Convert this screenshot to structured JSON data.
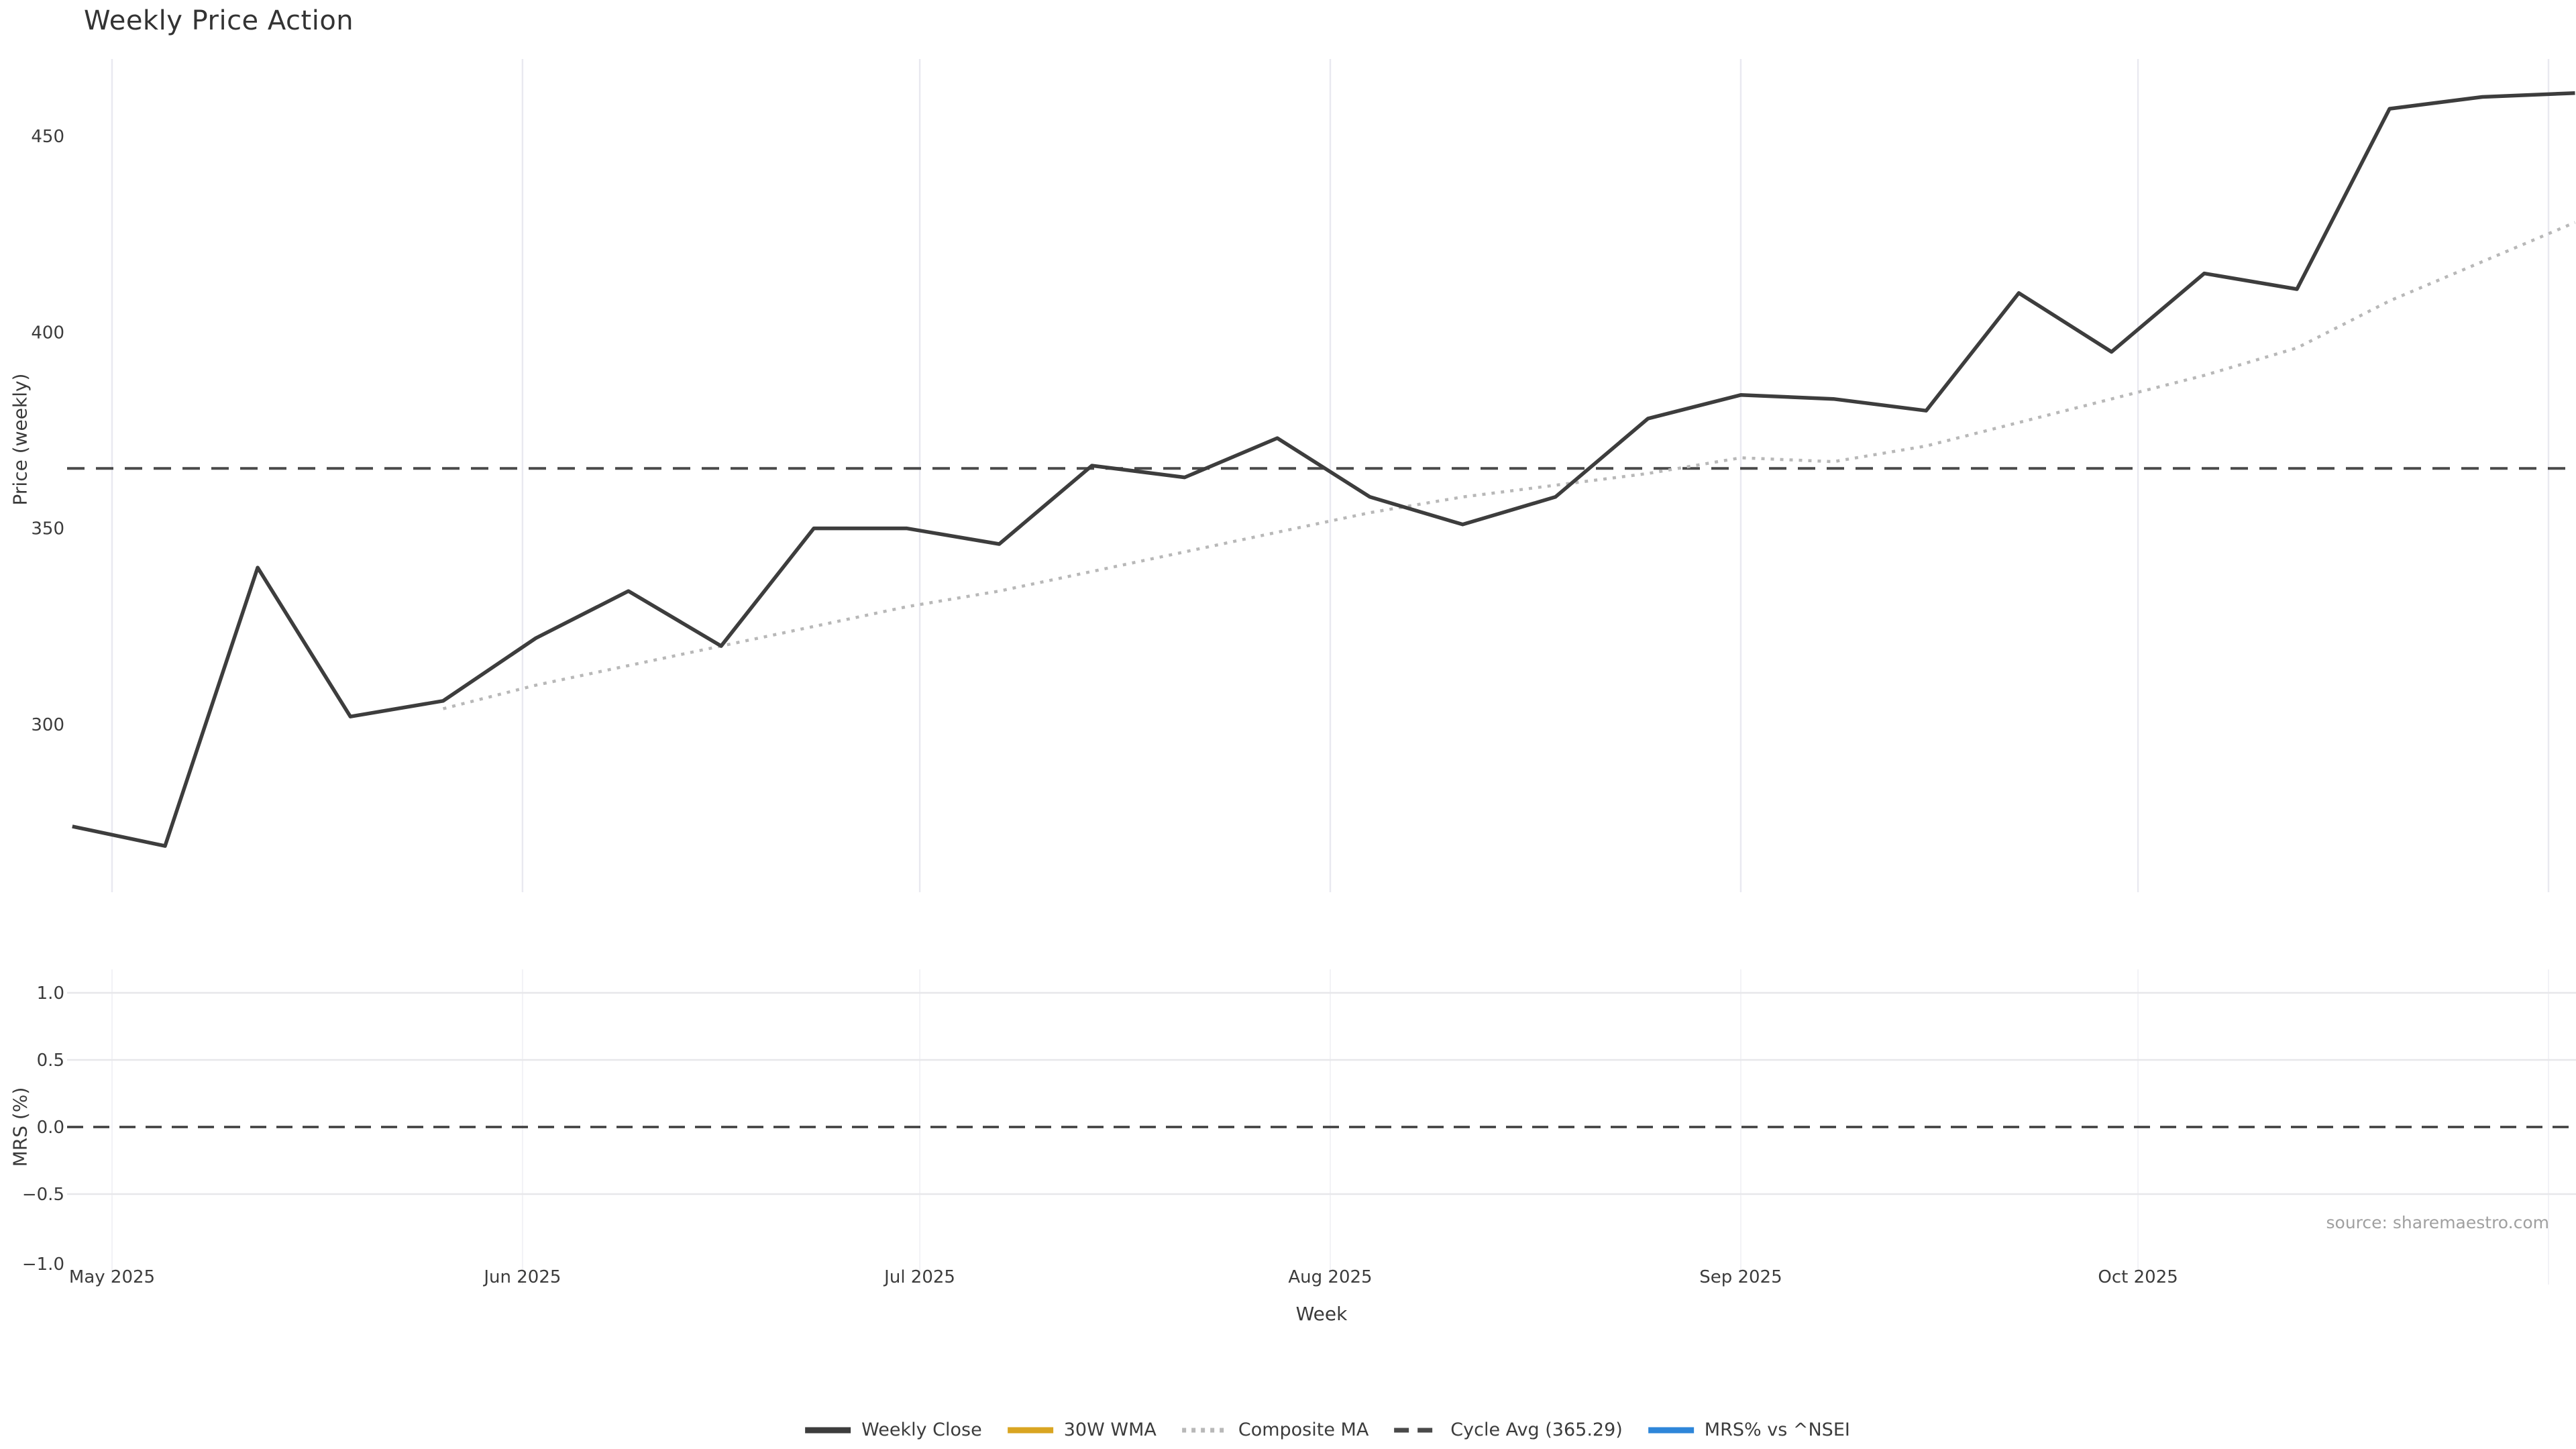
{
  "title": "Weekly Price Action",
  "source_note": "source: sharemaestro.com",
  "xlabel": "Week",
  "colors": {
    "close": "#3d3d3d",
    "wma30": "#d9a521",
    "composite": "#b8b8b8",
    "cycle_avg": "#4a4a4a",
    "mrs": "#2e86d9",
    "grid": "#e9e9f0",
    "grid_mrs": "#e7e7ea",
    "tick_text": "#3c3c3c",
    "source_text": "#a0a0a0"
  },
  "legend": [
    {
      "label": "Weekly Close",
      "color": "#3d3d3d",
      "style": "solid"
    },
    {
      "label": "30W WMA",
      "color": "#d9a521",
      "style": "solid"
    },
    {
      "label": "Composite MA",
      "color": "#b8b8b8",
      "style": "dotted"
    },
    {
      "label": "Cycle Avg (365.29)",
      "color": "#4a4a4a",
      "style": "dashed"
    },
    {
      "label": "MRS% vs ^NSEI",
      "color": "#2e86d9",
      "style": "solid"
    }
  ],
  "chart_data": [
    {
      "type": "line",
      "panel": "price",
      "title": "Weekly Price Action",
      "xlabel": "Week",
      "ylabel": "Price (weekly)",
      "ylim": [
        257,
        470
      ],
      "grid": "vertical-only",
      "legend_position": "bottom-center",
      "x_dates": [
        "2025-04-28",
        "2025-05-05",
        "2025-05-12",
        "2025-05-19",
        "2025-05-26",
        "2025-06-02",
        "2025-06-09",
        "2025-06-16",
        "2025-06-23",
        "2025-06-30",
        "2025-07-07",
        "2025-07-14",
        "2025-07-21",
        "2025-07-28",
        "2025-08-04",
        "2025-08-11",
        "2025-08-18",
        "2025-08-25",
        "2025-09-01",
        "2025-09-08",
        "2025-09-15",
        "2025-09-22",
        "2025-09-29",
        "2025-10-06",
        "2025-10-13",
        "2025-10-20",
        "2025-10-27",
        "2025-11-03"
      ],
      "x_ticks": [
        {
          "label": "May 2025",
          "date": "2025-05-01"
        },
        {
          "label": "Jun 2025",
          "date": "2025-06-01"
        },
        {
          "label": "Jul 2025",
          "date": "2025-07-01"
        },
        {
          "label": "Aug 2025",
          "date": "2025-08-01"
        },
        {
          "label": "Sep 2025",
          "date": "2025-09-01"
        },
        {
          "label": "Oct 2025",
          "date": "2025-10-01"
        },
        {
          "label": "",
          "date": "2025-11-01"
        }
      ],
      "y_ticks": [
        {
          "label": "300",
          "value": 300
        },
        {
          "label": "350",
          "value": 350
        },
        {
          "label": "400",
          "value": 400
        },
        {
          "label": "450",
          "value": 450
        }
      ],
      "reference_lines": [
        {
          "name": "Cycle Avg",
          "value": 365.29,
          "style": "dashed",
          "color": "#4a4a4a"
        }
      ],
      "series": [
        {
          "name": "Weekly Close",
          "style": "solid",
          "color": "#3d3d3d",
          "values": [
            274,
            269,
            340,
            302,
            306,
            322,
            334,
            320,
            350,
            350,
            346,
            366,
            363,
            373,
            358,
            351,
            358,
            378,
            384,
            383,
            380,
            410,
            395,
            415,
            411,
            457,
            460,
            461
          ]
        },
        {
          "name": "30W WMA",
          "style": "solid",
          "color": "#d9a521",
          "values": []
        },
        {
          "name": "Composite MA",
          "style": "dotted",
          "color": "#b8b8b8",
          "values": [
            null,
            null,
            null,
            null,
            304,
            310,
            315,
            320,
            325,
            330,
            334,
            339,
            344,
            349,
            354,
            358,
            361,
            364,
            368,
            367,
            371,
            377,
            383,
            389,
            396,
            408,
            418,
            428
          ]
        }
      ]
    },
    {
      "type": "line",
      "panel": "mrs",
      "ylabel": "MRS (%)",
      "ylim": [
        -1.15,
        1.15
      ],
      "grid": "horizontal",
      "y_ticks": [
        {
          "label": "1.0",
          "value": 1.0,
          "gridline": true
        },
        {
          "label": "0.5",
          "value": 0.5,
          "gridline": true
        },
        {
          "label": "0.0",
          "value": 0.0,
          "gridline": false
        },
        {
          "label": "−0.5",
          "value": -0.5,
          "gridline": true
        },
        {
          "label": "−1.0",
          "value": -1.0,
          "gridline": false
        }
      ],
      "reference_lines": [
        {
          "name": "Zero",
          "value": 0.0,
          "style": "dashed",
          "color": "#3d3d3d"
        }
      ],
      "series": [
        {
          "name": "MRS% vs ^NSEI",
          "style": "solid",
          "color": "#2e86d9",
          "values": []
        }
      ]
    }
  ]
}
